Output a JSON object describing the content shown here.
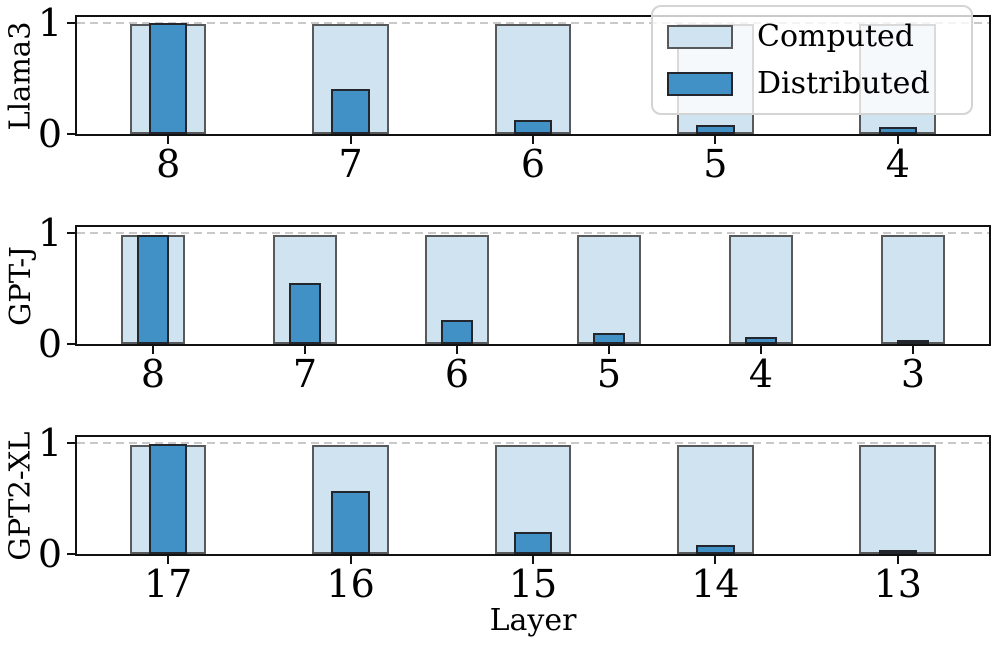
{
  "xlabel": "Layer",
  "colors": {
    "computed_fill": "#cfe3f0",
    "computed_edge": "#58595b",
    "distributed_fill": "#4190c6",
    "distributed_edge": "#23272d",
    "dashed_line": "#c9c9c9",
    "axis": "#111111",
    "legend_border": "#d4d4d4"
  },
  "legend": {
    "position": "upper right",
    "items": [
      "Computed",
      "Distributed"
    ]
  },
  "chart_data": [
    {
      "type": "bar",
      "ylabel": "Llama3",
      "categories": [
        "8",
        "7",
        "6",
        "5",
        "4"
      ],
      "series": [
        {
          "name": "Computed",
          "values": [
            0.99,
            0.99,
            0.99,
            0.99,
            0.99
          ]
        },
        {
          "name": "Distributed",
          "values": [
            1.0,
            0.4,
            0.13,
            0.08,
            0.06
          ]
        }
      ],
      "ylim": [
        0,
        1.05
      ],
      "yticks": [
        0,
        1
      ],
      "yticklabels": [
        "0",
        "1"
      ],
      "reference_line": 1.0,
      "grid": false
    },
    {
      "type": "bar",
      "ylabel": "GPT-J",
      "categories": [
        "8",
        "7",
        "6",
        "5",
        "4",
        "3"
      ],
      "series": [
        {
          "name": "Computed",
          "values": [
            0.98,
            0.98,
            0.98,
            0.98,
            0.98,
            0.98
          ]
        },
        {
          "name": "Distributed",
          "values": [
            0.98,
            0.55,
            0.22,
            0.1,
            0.06,
            0.04
          ]
        }
      ],
      "ylim": [
        0,
        1.05
      ],
      "yticks": [
        0,
        1
      ],
      "yticklabels": [
        "0",
        "1"
      ],
      "reference_line": 1.0,
      "grid": false
    },
    {
      "type": "bar",
      "ylabel": "GPT2-XL",
      "categories": [
        "17",
        "16",
        "15",
        "14",
        "13"
      ],
      "series": [
        {
          "name": "Computed",
          "values": [
            0.98,
            0.98,
            0.98,
            0.98,
            0.98
          ]
        },
        {
          "name": "Distributed",
          "values": [
            0.99,
            0.57,
            0.2,
            0.08,
            0.03
          ]
        }
      ],
      "ylim": [
        0,
        1.05
      ],
      "yticks": [
        0,
        1
      ],
      "yticklabels": [
        "0",
        "1"
      ],
      "reference_line": 1.0,
      "grid": false
    }
  ]
}
